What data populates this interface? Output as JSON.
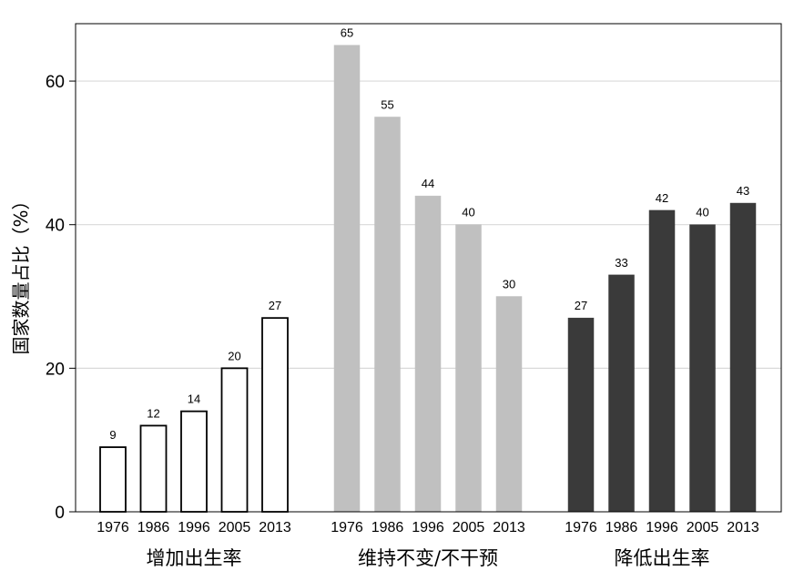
{
  "chart_data": {
    "type": "bar",
    "ylabel": "国家数量占比（%）",
    "ylim": [
      0,
      68
    ],
    "yticks": [
      0,
      20,
      40,
      60
    ],
    "grid": true,
    "categories": [
      "1976",
      "1986",
      "1996",
      "2005",
      "2013"
    ],
    "series": [
      {
        "name": "增加出生率",
        "values": [
          9,
          12,
          14,
          20,
          27
        ],
        "fill": "#ffffff",
        "stroke": "#000000"
      },
      {
        "name": "维持不变/不干预",
        "values": [
          65,
          55,
          44,
          40,
          30
        ],
        "fill": "#c0c0c0",
        "stroke": "#c0c0c0"
      },
      {
        "name": "降低出生率",
        "values": [
          27,
          33,
          42,
          40,
          43
        ],
        "fill": "#3a3a3a",
        "stroke": "#3a3a3a"
      }
    ]
  }
}
